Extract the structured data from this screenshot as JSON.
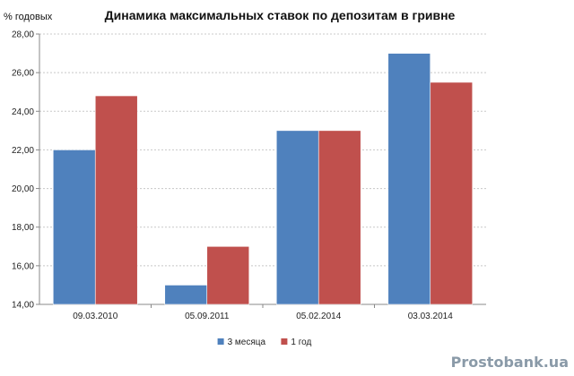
{
  "watermark": "Prostobank.ua",
  "chart_data": {
    "type": "bar",
    "title": "Динамика максимальных ставок по депозитам  в гривне",
    "ylabel": "% годовых",
    "xlabel": "",
    "categories": [
      "09.03.2010",
      "05.09.2011",
      "05.02.2014",
      "03.03.2014"
    ],
    "series": [
      {
        "name": "3 месяца",
        "color": "#4f81bd",
        "values": [
          22,
          15,
          23,
          27
        ]
      },
      {
        "name": "1 год",
        "color": "#c0504d",
        "values": [
          24.8,
          17,
          23,
          25.5
        ]
      }
    ],
    "ylim": [
      14,
      28
    ],
    "yticks": [
      "14,00",
      "16,00",
      "18,00",
      "20,00",
      "22,00",
      "24,00",
      "26,00",
      "28,00"
    ],
    "grid": true,
    "legend_position": "bottom"
  }
}
